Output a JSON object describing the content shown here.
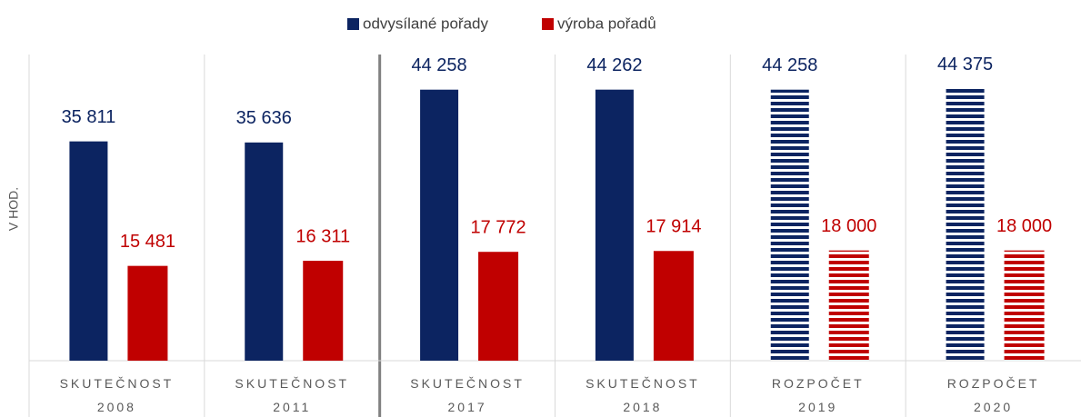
{
  "chart_data": {
    "type": "bar",
    "y_label": "V HOD.",
    "categories": [
      "SKUTEČNOST 2008",
      "SKUTEČNOST 2011",
      "SKUTEČNOST 2017",
      "SKUTEČNOST 2018",
      "ROZPOČET 2019",
      "ROZPOČET 2020"
    ],
    "series": [
      {
        "name": "odvysílané pořady",
        "color": "#0c2461",
        "values": [
          35811,
          35636,
          44258,
          44262,
          44258,
          44375
        ],
        "value_labels": [
          "35 811",
          "35 636",
          "44 258",
          "44 262",
          "44 258",
          "44 375"
        ]
      },
      {
        "name": "výroba pořadů",
        "color": "#c00000",
        "values": [
          15481,
          16311,
          17772,
          17914,
          18000,
          18000
        ],
        "value_labels": [
          "15 481",
          "16 311",
          "17 772",
          "17 914",
          "18 000",
          "18 000"
        ]
      }
    ],
    "striped": [
      false,
      false,
      false,
      false,
      true,
      true
    ],
    "ylim": [
      0,
      50000
    ],
    "legend": "top"
  }
}
